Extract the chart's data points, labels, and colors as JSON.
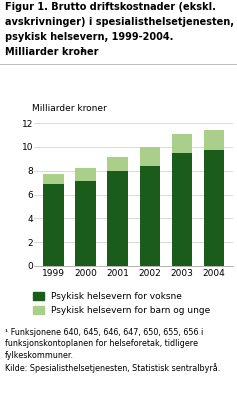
{
  "years": [
    "1999",
    "2000",
    "2001",
    "2002",
    "2003",
    "2004"
  ],
  "voksne": [
    6.9,
    7.1,
    8.0,
    8.4,
    9.5,
    9.7
  ],
  "barn": [
    0.85,
    1.1,
    1.15,
    1.55,
    1.6,
    1.75
  ],
  "color_voksne": "#1a5c1a",
  "color_barn": "#aacf8a",
  "ylabel": "Milliarder kroner",
  "ylim": [
    0,
    12
  ],
  "yticks": [
    0,
    2,
    4,
    6,
    8,
    10,
    12
  ],
  "legend_voksne": "Psykisk helsevern for voksne",
  "legend_barn": "Psykisk helsevern for barn og unge",
  "title_line1": "Figur 1. Brutto driftskostnader (ekskl.",
  "title_line2": "avskrivninger) i spesialisthelsetjenesten,",
  "title_line3": "psykisk helsevern, 1999-2004.",
  "title_line4": "Milliarder kroner",
  "title_sup": "1",
  "footnote1": "¹ Funksjonene 640, 645, 646, 647, 650, 655, 656 i",
  "footnote2": "funksjonskontoplanen for helseforetak, tidligere",
  "footnote3": "fylkeskommuner.",
  "footnote4": "Kilde: Spesialisthelsetjenesten, Statistisk sentralbyrå."
}
